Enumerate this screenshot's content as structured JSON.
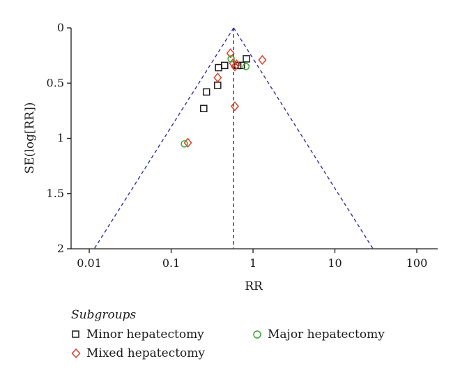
{
  "chart_data": {
    "type": "scatter",
    "title": "",
    "xlabel": "RR",
    "ylabel": "SE(log[RR])",
    "x_scale": "log",
    "xlim": [
      0.006,
      180
    ],
    "ylim": [
      0,
      2
    ],
    "y_inverted": true,
    "x_ticks": [
      0.01,
      0.1,
      1,
      10,
      100
    ],
    "x_tick_labels": [
      "0.01",
      "0.1",
      "1",
      "10",
      "100"
    ],
    "y_ticks": [
      0,
      0.5,
      1,
      1.5,
      2
    ],
    "y_tick_labels": [
      "0",
      "0.5",
      "1",
      "1.5",
      "2"
    ],
    "pooled_rr": 0.58,
    "funnel_color": "#2f2fa3",
    "legend_title": "Subgroups",
    "series": [
      {
        "name": "Minor hepatectomy",
        "marker": "square",
        "color": "#1a1a1a",
        "points": [
          {
            "x": 0.25,
            "y": 0.73
          },
          {
            "x": 0.27,
            "y": 0.58
          },
          {
            "x": 0.37,
            "y": 0.52
          },
          {
            "x": 0.38,
            "y": 0.36
          },
          {
            "x": 0.45,
            "y": 0.34
          },
          {
            "x": 0.65,
            "y": 0.34
          },
          {
            "x": 0.72,
            "y": 0.34
          },
          {
            "x": 0.83,
            "y": 0.28
          }
        ]
      },
      {
        "name": "Mixed hepatectomy",
        "marker": "diamond",
        "color": "#d9412b",
        "points": [
          {
            "x": 0.16,
            "y": 1.04
          },
          {
            "x": 0.37,
            "y": 0.45
          },
          {
            "x": 0.53,
            "y": 0.23
          },
          {
            "x": 0.57,
            "y": 0.32
          },
          {
            "x": 0.6,
            "y": 0.35
          },
          {
            "x": 0.6,
            "y": 0.71
          },
          {
            "x": 0.63,
            "y": 0.33
          },
          {
            "x": 1.3,
            "y": 0.29
          }
        ]
      },
      {
        "name": "Major hepatectomy",
        "marker": "circle",
        "color": "#3aa832",
        "points": [
          {
            "x": 0.145,
            "y": 1.05
          },
          {
            "x": 0.54,
            "y": 0.28
          },
          {
            "x": 0.82,
            "y": 0.35
          }
        ]
      }
    ]
  }
}
